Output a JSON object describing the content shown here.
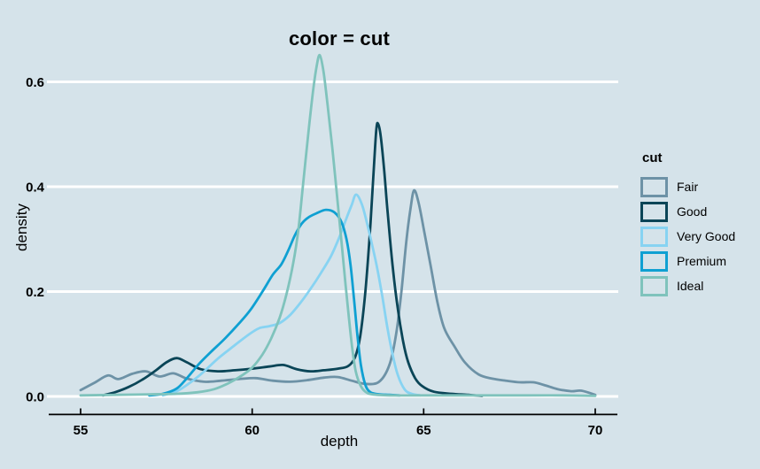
{
  "background_color": "#d5e3ea",
  "grid_color": "#ffffff",
  "axis_color": "#000000",
  "text_color": "#000000",
  "chart_data": {
    "type": "line",
    "subtype": "kernel-density",
    "title": "color = cut",
    "xlabel": "depth",
    "ylabel": "density",
    "x_ticks": [
      55,
      60,
      65,
      70
    ],
    "y_ticks": [
      0.0,
      0.2,
      0.4,
      0.6
    ],
    "y_tick_labels": [
      "0.0",
      "0.2",
      "0.4",
      "0.6"
    ],
    "xlim": [
      54.0,
      70.7
    ],
    "ylim": [
      0,
      0.675
    ],
    "grid": "horizontal white lines, no vertical grid, no panel border",
    "legend": {
      "title": "cut",
      "position": "right"
    },
    "series": [
      {
        "name": "Fair",
        "color": "#6d92a6",
        "points": [
          [
            55.0,
            0.012
          ],
          [
            55.4,
            0.026
          ],
          [
            55.8,
            0.04
          ],
          [
            56.1,
            0.033
          ],
          [
            56.5,
            0.043
          ],
          [
            56.9,
            0.048
          ],
          [
            57.3,
            0.038
          ],
          [
            57.7,
            0.044
          ],
          [
            58.1,
            0.034
          ],
          [
            58.6,
            0.028
          ],
          [
            59.1,
            0.03
          ],
          [
            59.6,
            0.033
          ],
          [
            60.1,
            0.035
          ],
          [
            60.6,
            0.03
          ],
          [
            61.1,
            0.028
          ],
          [
            61.6,
            0.031
          ],
          [
            62.1,
            0.036
          ],
          [
            62.5,
            0.037
          ],
          [
            62.9,
            0.03
          ],
          [
            63.3,
            0.024
          ],
          [
            63.7,
            0.028
          ],
          [
            64.0,
            0.06
          ],
          [
            64.2,
            0.12
          ],
          [
            64.35,
            0.2
          ],
          [
            64.5,
            0.3
          ],
          [
            64.62,
            0.36
          ],
          [
            64.72,
            0.393
          ],
          [
            64.85,
            0.37
          ],
          [
            65.0,
            0.32
          ],
          [
            65.2,
            0.25
          ],
          [
            65.4,
            0.18
          ],
          [
            65.6,
            0.13
          ],
          [
            65.9,
            0.095
          ],
          [
            66.2,
            0.065
          ],
          [
            66.6,
            0.042
          ],
          [
            67.0,
            0.034
          ],
          [
            67.4,
            0.03
          ],
          [
            67.8,
            0.027
          ],
          [
            68.2,
            0.027
          ],
          [
            68.5,
            0.022
          ],
          [
            68.9,
            0.014
          ],
          [
            69.3,
            0.01
          ],
          [
            69.6,
            0.011
          ],
          [
            70.0,
            0.003
          ]
        ]
      },
      {
        "name": "Good",
        "color": "#0a4557",
        "points": [
          [
            55.65,
            0.002
          ],
          [
            56.0,
            0.008
          ],
          [
            56.4,
            0.018
          ],
          [
            56.8,
            0.032
          ],
          [
            57.2,
            0.05
          ],
          [
            57.5,
            0.065
          ],
          [
            57.8,
            0.073
          ],
          [
            58.1,
            0.065
          ],
          [
            58.5,
            0.052
          ],
          [
            59.0,
            0.048
          ],
          [
            59.5,
            0.05
          ],
          [
            60.0,
            0.053
          ],
          [
            60.5,
            0.057
          ],
          [
            60.9,
            0.06
          ],
          [
            61.3,
            0.052
          ],
          [
            61.7,
            0.048
          ],
          [
            62.1,
            0.05
          ],
          [
            62.5,
            0.053
          ],
          [
            62.8,
            0.058
          ],
          [
            63.0,
            0.075
          ],
          [
            63.15,
            0.115
          ],
          [
            63.3,
            0.2
          ],
          [
            63.45,
            0.33
          ],
          [
            63.55,
            0.44
          ],
          [
            63.62,
            0.51
          ],
          [
            63.67,
            0.52
          ],
          [
            63.75,
            0.495
          ],
          [
            63.85,
            0.43
          ],
          [
            63.95,
            0.35
          ],
          [
            64.1,
            0.245
          ],
          [
            64.25,
            0.165
          ],
          [
            64.4,
            0.105
          ],
          [
            64.55,
            0.065
          ],
          [
            64.75,
            0.035
          ],
          [
            64.95,
            0.02
          ],
          [
            65.3,
            0.009
          ],
          [
            65.8,
            0.005
          ],
          [
            66.3,
            0.003
          ],
          [
            66.7,
            0.001
          ]
        ]
      },
      {
        "name": "Very Good",
        "color": "#87d3f2",
        "points": [
          [
            57.4,
            0.002
          ],
          [
            57.8,
            0.01
          ],
          [
            58.1,
            0.022
          ],
          [
            58.5,
            0.042
          ],
          [
            59.0,
            0.072
          ],
          [
            59.5,
            0.098
          ],
          [
            59.9,
            0.118
          ],
          [
            60.2,
            0.13
          ],
          [
            60.5,
            0.134
          ],
          [
            60.8,
            0.14
          ],
          [
            61.1,
            0.155
          ],
          [
            61.4,
            0.178
          ],
          [
            61.7,
            0.205
          ],
          [
            62.0,
            0.235
          ],
          [
            62.3,
            0.268
          ],
          [
            62.55,
            0.305
          ],
          [
            62.75,
            0.34
          ],
          [
            62.9,
            0.365
          ],
          [
            63.03,
            0.385
          ],
          [
            63.2,
            0.366
          ],
          [
            63.35,
            0.33
          ],
          [
            63.5,
            0.288
          ],
          [
            63.65,
            0.243
          ],
          [
            63.8,
            0.188
          ],
          [
            63.95,
            0.128
          ],
          [
            64.1,
            0.078
          ],
          [
            64.25,
            0.04
          ],
          [
            64.45,
            0.013
          ],
          [
            64.65,
            0.005
          ],
          [
            64.9,
            0.002
          ]
        ]
      },
      {
        "name": "Premium",
        "color": "#0fa0d2",
        "points": [
          [
            57.0,
            0.002
          ],
          [
            57.4,
            0.005
          ],
          [
            57.8,
            0.015
          ],
          [
            58.1,
            0.035
          ],
          [
            58.45,
            0.062
          ],
          [
            58.8,
            0.085
          ],
          [
            59.2,
            0.11
          ],
          [
            59.6,
            0.138
          ],
          [
            59.95,
            0.165
          ],
          [
            60.3,
            0.2
          ],
          [
            60.6,
            0.232
          ],
          [
            60.85,
            0.252
          ],
          [
            61.05,
            0.278
          ],
          [
            61.25,
            0.308
          ],
          [
            61.45,
            0.33
          ],
          [
            61.65,
            0.342
          ],
          [
            61.9,
            0.35
          ],
          [
            62.15,
            0.356
          ],
          [
            62.4,
            0.351
          ],
          [
            62.6,
            0.333
          ],
          [
            62.75,
            0.3
          ],
          [
            62.87,
            0.25
          ],
          [
            62.97,
            0.185
          ],
          [
            63.07,
            0.115
          ],
          [
            63.17,
            0.06
          ],
          [
            63.3,
            0.022
          ],
          [
            63.45,
            0.008
          ],
          [
            63.7,
            0.004
          ],
          [
            64.0,
            0.003
          ],
          [
            64.3,
            0.002
          ]
        ]
      },
      {
        "name": "Ideal",
        "color": "#7fc3bc",
        "points": [
          [
            55.0,
            0.002
          ],
          [
            56.0,
            0.003
          ],
          [
            57.0,
            0.004
          ],
          [
            57.8,
            0.005
          ],
          [
            58.4,
            0.008
          ],
          [
            58.9,
            0.014
          ],
          [
            59.3,
            0.025
          ],
          [
            59.7,
            0.04
          ],
          [
            60.0,
            0.055
          ],
          [
            60.3,
            0.08
          ],
          [
            60.55,
            0.11
          ],
          [
            60.8,
            0.15
          ],
          [
            61.0,
            0.195
          ],
          [
            61.2,
            0.255
          ],
          [
            61.35,
            0.32
          ],
          [
            61.5,
            0.415
          ],
          [
            61.65,
            0.51
          ],
          [
            61.78,
            0.585
          ],
          [
            61.88,
            0.63
          ],
          [
            61.97,
            0.651
          ],
          [
            62.08,
            0.62
          ],
          [
            62.2,
            0.555
          ],
          [
            62.35,
            0.465
          ],
          [
            62.5,
            0.365
          ],
          [
            62.62,
            0.285
          ],
          [
            62.72,
            0.215
          ],
          [
            62.82,
            0.15
          ],
          [
            62.92,
            0.09
          ],
          [
            63.02,
            0.048
          ],
          [
            63.15,
            0.022
          ],
          [
            63.3,
            0.009
          ],
          [
            63.5,
            0.004
          ],
          [
            64.0,
            0.002
          ],
          [
            65.0,
            0.002
          ],
          [
            66.5,
            0.002
          ],
          [
            68.0,
            0.002
          ],
          [
            69.0,
            0.002
          ],
          [
            70.0,
            0.001
          ]
        ]
      }
    ]
  }
}
